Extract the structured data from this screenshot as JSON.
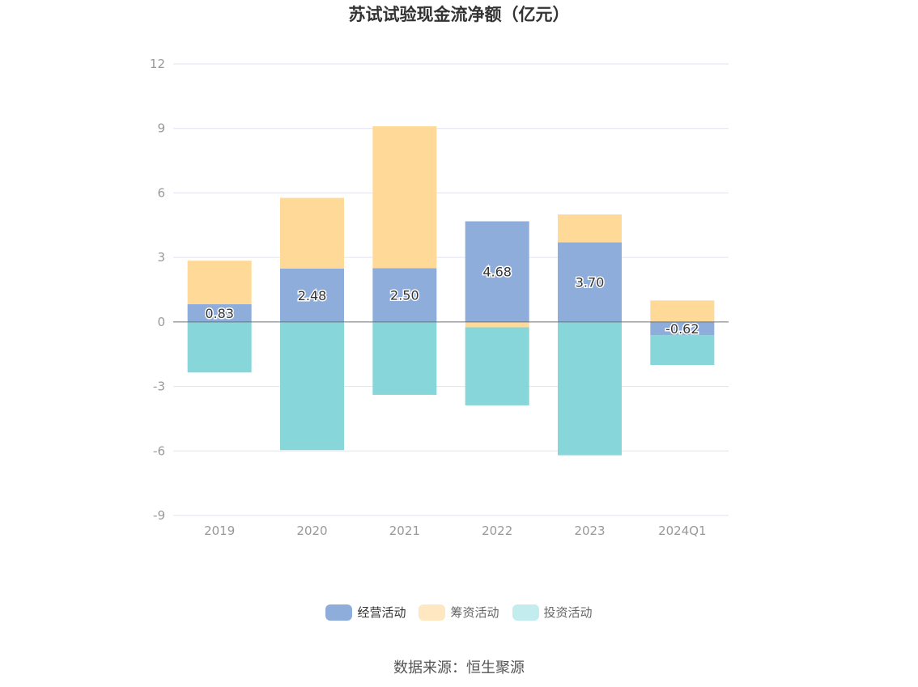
{
  "title": "苏试试验现金流净额（亿元）",
  "source": "数据来源：恒生聚源",
  "chart_data": {
    "type": "bar",
    "stacked": true,
    "categories": [
      "2019",
      "2020",
      "2021",
      "2022",
      "2023",
      "2024Q1"
    ],
    "ylim": [
      -9,
      12
    ],
    "yticks": [
      12,
      9,
      6,
      3,
      0,
      -3,
      -6,
      -9
    ],
    "grid": true,
    "legend_position": "bottom",
    "series": [
      {
        "name": "经营活动",
        "color": "#8eaddb",
        "values": [
          0.83,
          2.48,
          2.5,
          4.68,
          3.7,
          -0.62
        ]
      },
      {
        "name": "筹资活动",
        "color": "#ffd998",
        "values": [
          2.02,
          3.29,
          6.6,
          -0.25,
          1.3,
          1.0
        ]
      },
      {
        "name": "投资活动",
        "color": "#87d6da",
        "values": [
          -2.35,
          -5.96,
          -3.39,
          -3.63,
          -6.2,
          -1.38
        ]
      }
    ],
    "data_labels": [
      "0.83",
      "2.48",
      "2.50",
      "4.68",
      "3.70",
      "-0.62"
    ]
  }
}
